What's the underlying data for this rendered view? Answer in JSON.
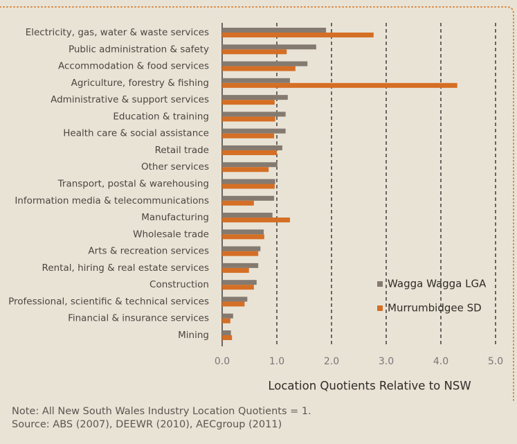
{
  "chart_data": {
    "type": "bar",
    "orientation": "horizontal",
    "x_label": "Location Quotients Relative to NSW",
    "categories": [
      "Electricity, gas, water & waste services",
      "Public administration & safety",
      "Accommodation & food services",
      "Agriculture, forestry & fishing",
      "Administrative & support services",
      "Education & training",
      "Health care & social assistance",
      "Retail trade",
      "Other services",
      "Transport, postal & warehousing",
      "Information media & telecommunications",
      "Manufacturing",
      "Wholesale trade",
      "Arts & recreation services",
      "Rental, hiring & real estate services",
      "Construction",
      "Professional, scientific & technical services",
      "Financial & insurance services",
      "Mining"
    ],
    "series": [
      {
        "name": "Wagga Wagga LGA",
        "color": "#857a70",
        "values": [
          1.9,
          1.72,
          1.56,
          1.24,
          1.2,
          1.16,
          1.16,
          1.1,
          1.01,
          0.97,
          0.95,
          0.92,
          0.76,
          0.7,
          0.66,
          0.63,
          0.46,
          0.2,
          0.16
        ]
      },
      {
        "name": "Murrumbidgee SD",
        "color": "#d46f25",
        "values": [
          2.77,
          1.18,
          1.34,
          4.3,
          0.96,
          0.97,
          0.95,
          1.0,
          0.85,
          0.96,
          0.58,
          1.24,
          0.77,
          0.66,
          0.49,
          0.58,
          0.41,
          0.15,
          0.18
        ]
      }
    ],
    "xlim": [
      0,
      5
    ],
    "xticks": [
      {
        "value": 0,
        "label": "0.0"
      },
      {
        "value": 1,
        "label": "1.0"
      },
      {
        "value": 2,
        "label": "2.0"
      },
      {
        "value": 3,
        "label": "3.0"
      },
      {
        "value": 4,
        "label": "4.0"
      },
      {
        "value": 5,
        "label": "5.0"
      }
    ],
    "grid": true,
    "legend": "lower right"
  },
  "notes": [
    "Note: All New South Wales Industry Location Quotients = 1.",
    "Source: ABS (2007), DEEWR (2010), AECgroup (2011)"
  ]
}
